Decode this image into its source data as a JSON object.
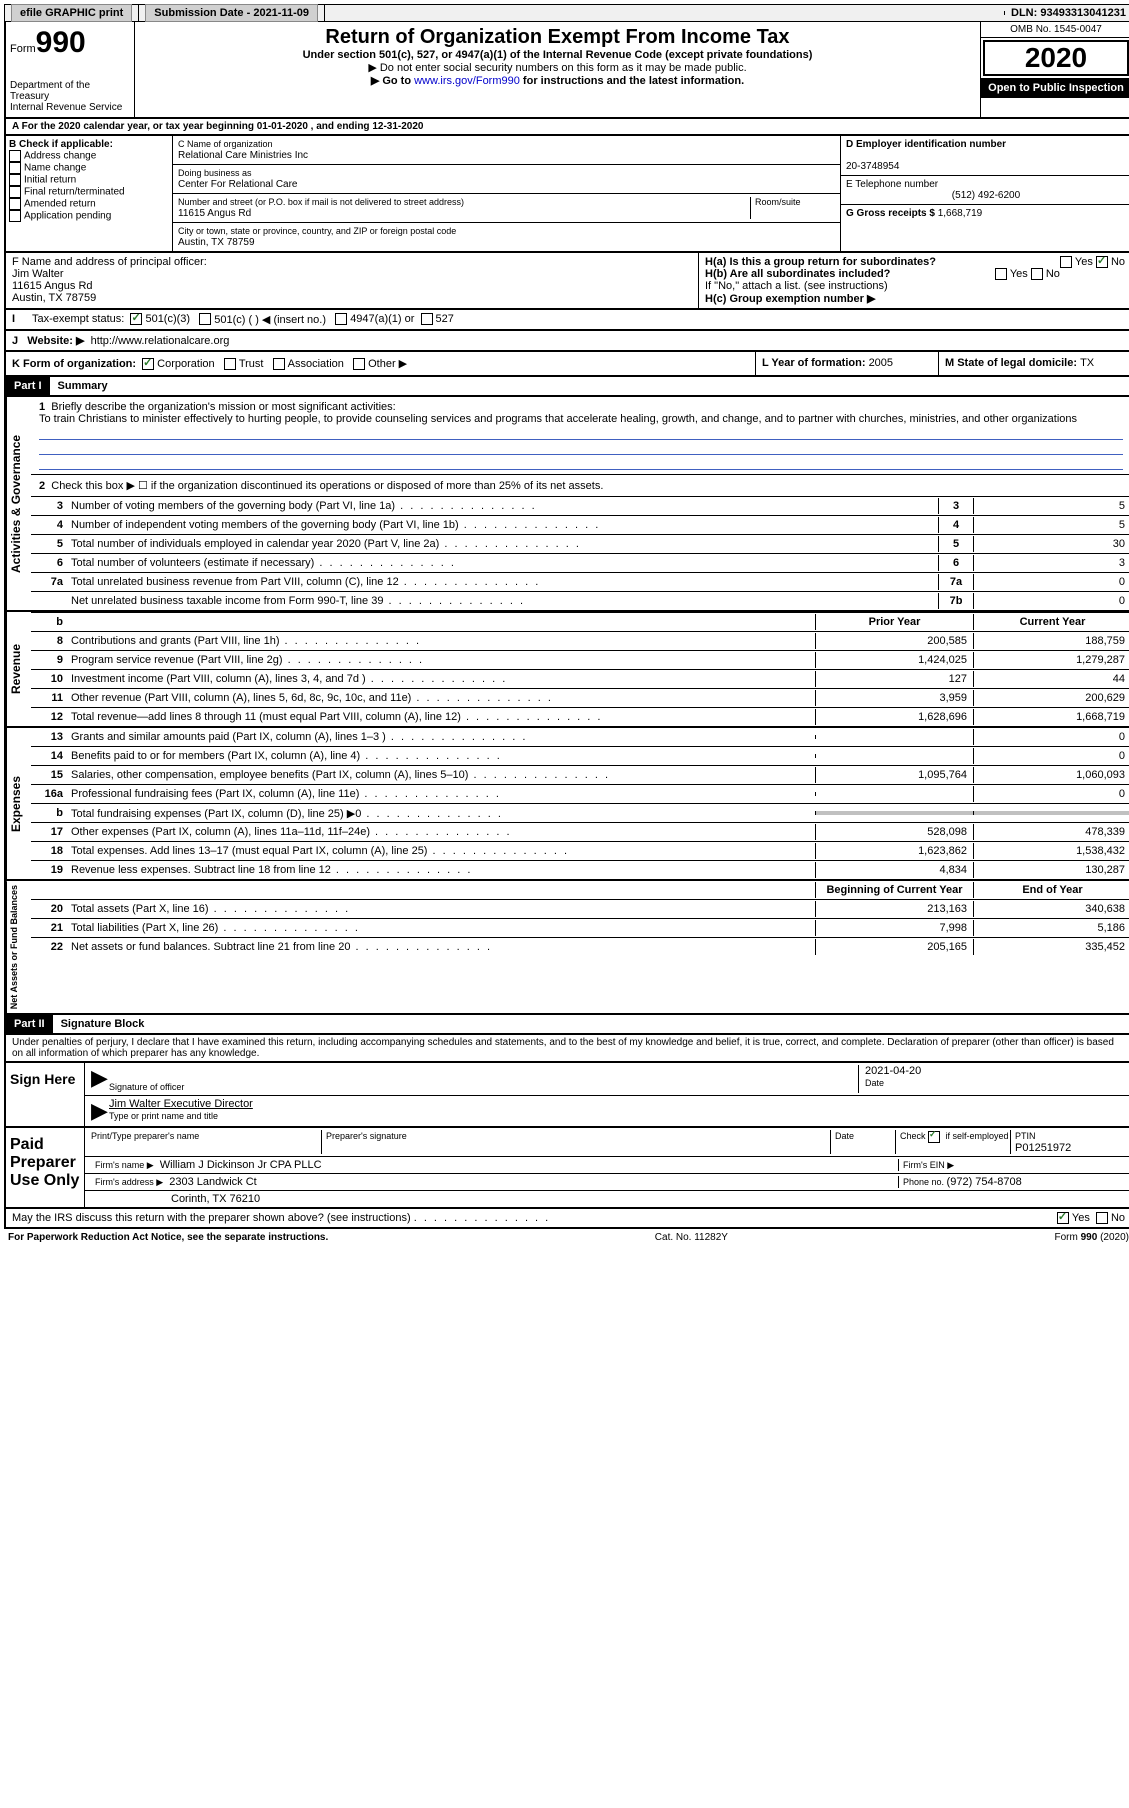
{
  "topbar": {
    "efile": "efile GRAPHIC print",
    "subdate_label": "Submission Date - ",
    "subdate": "2021-11-09",
    "dln_label": "DLN: ",
    "dln": "93493313041231"
  },
  "header": {
    "form_label": "Form",
    "form_num": "990",
    "dept": "Department of the Treasury\nInternal Revenue Service",
    "title": "Return of Organization Exempt From Income Tax",
    "subtitle": "Under section 501(c), 527, or 4947(a)(1) of the Internal Revenue Code (except private foundations)",
    "note1": "▶ Do not enter social security numbers on this form as it may be made public.",
    "note2_pre": "▶ Go to ",
    "note2_link": "www.irs.gov/Form990",
    "note2_post": " for instructions and the latest information.",
    "omb": "OMB No. 1545-0047",
    "year": "2020",
    "open": "Open to Public Inspection"
  },
  "periodA": "A For the 2020 calendar year, or tax year beginning 01-01-2020    , and ending 12-31-2020",
  "boxB": {
    "label": "B Check if applicable:",
    "items": [
      "Address change",
      "Name change",
      "Initial return",
      "Final return/terminated",
      "Amended return",
      "Application pending"
    ]
  },
  "boxC": {
    "name_label": "C Name of organization",
    "name": "Relational Care Ministries Inc",
    "dba_label": "Doing business as",
    "dba": "Center For Relational Care",
    "addr_label": "Number and street (or P.O. box if mail is not delivered to street address)",
    "room_label": "Room/suite",
    "addr": "11615 Angus Rd",
    "city_label": "City or town, state or province, country, and ZIP or foreign postal code",
    "city": "Austin, TX  78759"
  },
  "boxD": {
    "label": "D Employer identification number",
    "val": "20-3748954"
  },
  "boxE": {
    "label": "E Telephone number",
    "val": "(512) 492-6200"
  },
  "boxG": {
    "label": "G Gross receipts $ ",
    "val": "1,668,719"
  },
  "boxF": {
    "label": "F  Name and address of principal officer:",
    "name": "Jim Walter",
    "addr1": "11615 Angus Rd",
    "addr2": "Austin, TX  78759"
  },
  "boxH": {
    "a": "H(a)  Is this a group return for subordinates?",
    "b": "H(b)  Are all subordinates included?",
    "b_note": "If \"No,\" attach a list. (see instructions)",
    "c": "H(c)  Group exemption number ▶",
    "yes": "Yes",
    "no": "No"
  },
  "boxI": {
    "label": "Tax-exempt status:",
    "opts": [
      "501(c)(3)",
      "501(c) (  ) ◀ (insert no.)",
      "4947(a)(1) or",
      "527"
    ]
  },
  "boxJ": {
    "label": "J",
    "text": "Website: ▶",
    "url": "http://www.relationalcare.org"
  },
  "boxK": {
    "label": "K Form of organization:",
    "opts": [
      "Corporation",
      "Trust",
      "Association",
      "Other ▶"
    ]
  },
  "boxL": {
    "label": "L Year of formation: ",
    "val": "2005"
  },
  "boxM": {
    "label": "M State of legal domicile: ",
    "val": "TX"
  },
  "part1": {
    "header": "Part I",
    "title": "Summary",
    "vert_ag": "Activities & Governance",
    "vert_rev": "Revenue",
    "vert_exp": "Expenses",
    "vert_na": "Net Assets or Fund Balances",
    "line1_label": "Briefly describe the organization's mission or most significant activities:",
    "line1_text": "To train Christians to minister effectively to hurting people, to provide counseling services and programs that accelerate healing, growth, and change, and to partner with churches, ministries, and other organizations",
    "line2": "Check this box ▶ ☐ if the organization discontinued its operations or disposed of more than 25% of its net assets.",
    "rows_ag": [
      {
        "n": "3",
        "t": "Number of voting members of the governing body (Part VI, line 1a)",
        "b": "3",
        "v": "5"
      },
      {
        "n": "4",
        "t": "Number of independent voting members of the governing body (Part VI, line 1b)",
        "b": "4",
        "v": "5"
      },
      {
        "n": "5",
        "t": "Total number of individuals employed in calendar year 2020 (Part V, line 2a)",
        "b": "5",
        "v": "30"
      },
      {
        "n": "6",
        "t": "Total number of volunteers (estimate if necessary)",
        "b": "6",
        "v": "3"
      },
      {
        "n": "7a",
        "t": "Total unrelated business revenue from Part VIII, column (C), line 12",
        "b": "7a",
        "v": "0"
      },
      {
        "n": "",
        "t": "Net unrelated business taxable income from Form 990-T, line 39",
        "b": "7b",
        "v": "0"
      }
    ],
    "col_prior": "Prior Year",
    "col_curr": "Current Year",
    "rows_rev": [
      {
        "n": "8",
        "t": "Contributions and grants (Part VIII, line 1h)",
        "p": "200,585",
        "c": "188,759"
      },
      {
        "n": "9",
        "t": "Program service revenue (Part VIII, line 2g)",
        "p": "1,424,025",
        "c": "1,279,287"
      },
      {
        "n": "10",
        "t": "Investment income (Part VIII, column (A), lines 3, 4, and 7d )",
        "p": "127",
        "c": "44"
      },
      {
        "n": "11",
        "t": "Other revenue (Part VIII, column (A), lines 5, 6d, 8c, 9c, 10c, and 11e)",
        "p": "3,959",
        "c": "200,629"
      },
      {
        "n": "12",
        "t": "Total revenue—add lines 8 through 11 (must equal Part VIII, column (A), line 12)",
        "p": "1,628,696",
        "c": "1,668,719"
      }
    ],
    "rows_exp": [
      {
        "n": "13",
        "t": "Grants and similar amounts paid (Part IX, column (A), lines 1–3 )",
        "p": "",
        "c": "0"
      },
      {
        "n": "14",
        "t": "Benefits paid to or for members (Part IX, column (A), line 4)",
        "p": "",
        "c": "0"
      },
      {
        "n": "15",
        "t": "Salaries, other compensation, employee benefits (Part IX, column (A), lines 5–10)",
        "p": "1,095,764",
        "c": "1,060,093"
      },
      {
        "n": "16a",
        "t": "Professional fundraising fees (Part IX, column (A), line 11e)",
        "p": "",
        "c": "0"
      },
      {
        "n": "b",
        "t": "Total fundraising expenses (Part IX, column (D), line 25) ▶0",
        "p": "GRAY",
        "c": "GRAY"
      },
      {
        "n": "17",
        "t": "Other expenses (Part IX, column (A), lines 11a–11d, 11f–24e)",
        "p": "528,098",
        "c": "478,339"
      },
      {
        "n": "18",
        "t": "Total expenses. Add lines 13–17 (must equal Part IX, column (A), line 25)",
        "p": "1,623,862",
        "c": "1,538,432"
      },
      {
        "n": "19",
        "t": "Revenue less expenses. Subtract line 18 from line 12",
        "p": "4,834",
        "c": "130,287"
      }
    ],
    "col_beg": "Beginning of Current Year",
    "col_end": "End of Year",
    "rows_na": [
      {
        "n": "20",
        "t": "Total assets (Part X, line 16)",
        "p": "213,163",
        "c": "340,638"
      },
      {
        "n": "21",
        "t": "Total liabilities (Part X, line 26)",
        "p": "7,998",
        "c": "5,186"
      },
      {
        "n": "22",
        "t": "Net assets or fund balances. Subtract line 21 from line 20",
        "p": "205,165",
        "c": "335,452"
      }
    ]
  },
  "part2": {
    "header": "Part II",
    "title": "Signature Block",
    "decl": "Under penalties of perjury, I declare that I have examined this return, including accompanying schedules and statements, and to the best of my knowledge and belief, it is true, correct, and complete. Declaration of preparer (other than officer) is based on all information of which preparer has any knowledge.",
    "sign_here": "Sign Here",
    "sig_officer": "Signature of officer",
    "date": "Date",
    "sig_date": "2021-04-20",
    "name_title": "Jim Walter  Executive Director",
    "name_title_label": "Type or print name and title",
    "paid": "Paid Preparer Use Only",
    "prep_name_label": "Print/Type preparer's name",
    "prep_sig_label": "Preparer's signature",
    "date_label": "Date",
    "check_label": "Check ☑ if self-employed",
    "ptin_label": "PTIN",
    "ptin": "P01251972",
    "firm_name_label": "Firm's name    ▶",
    "firm_name": "William J Dickinson Jr CPA PLLC",
    "firm_ein_label": "Firm's EIN ▶",
    "firm_addr_label": "Firm's address ▶",
    "firm_addr1": "2303 Landwick Ct",
    "firm_addr2": "Corinth, TX  76210",
    "phone_label": "Phone no. ",
    "phone": "(972) 754-8708",
    "discuss": "May the IRS discuss this return with the preparer shown above? (see instructions)"
  },
  "footer": {
    "left": "For Paperwork Reduction Act Notice, see the separate instructions.",
    "mid": "Cat. No. 11282Y",
    "right": "Form 990 (2020)"
  }
}
